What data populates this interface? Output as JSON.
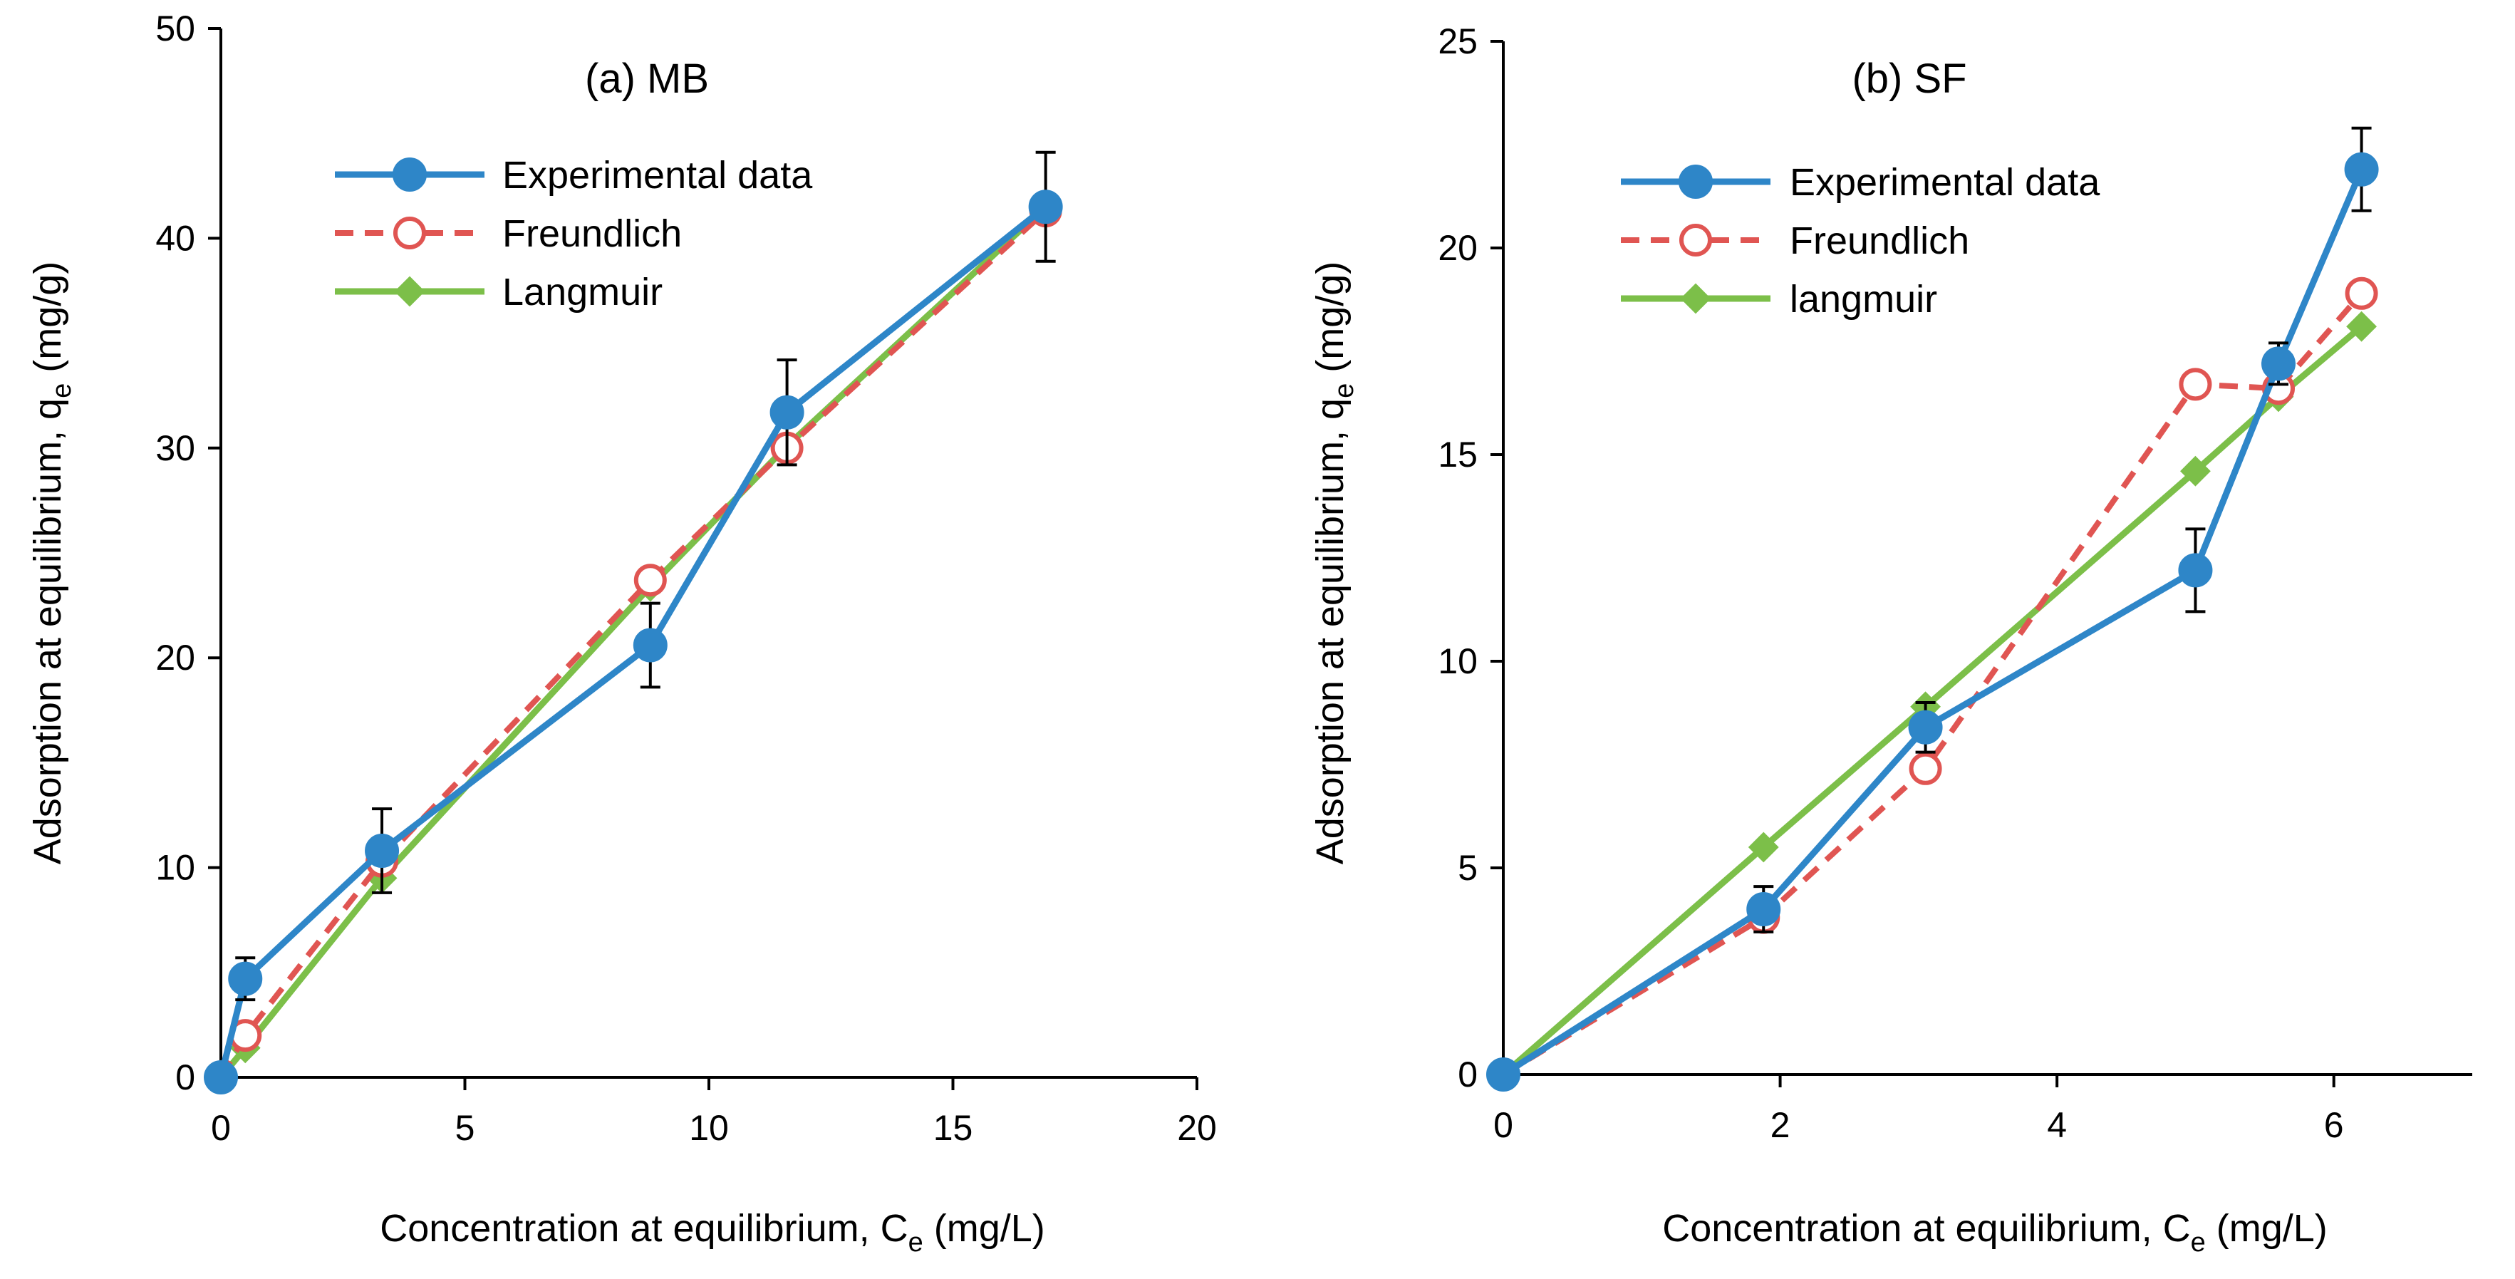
{
  "chart_data": [
    {
      "type": "line",
      "title": "(a) MB",
      "xlabel": "Concentration at equilibrium, C",
      "xlabel_sub": "e",
      "xlabel_unit": " (mg/L)",
      "ylabel": "Adsorption at equilibrium, q",
      "ylabel_sub": "e",
      "ylabel_unit": " (mg/g)",
      "xlim": [
        0,
        20
      ],
      "ylim": [
        0,
        50
      ],
      "xticks": [
        "0",
        "5",
        "10",
        "15",
        "20"
      ],
      "xtick_values": [
        0,
        5,
        10,
        15,
        20
      ],
      "yticks": [
        "0",
        "10",
        "20",
        "30",
        "40",
        "50"
      ],
      "ytick_values": [
        0,
        10,
        20,
        30,
        40,
        50
      ],
      "legend_position": "top-left",
      "series": [
        {
          "name": "Experimental data",
          "style": "solid-filled-circle",
          "color": "#2E86C8",
          "x": [
            0,
            0.5,
            3.3,
            8.8,
            11.6,
            16.9
          ],
          "y": [
            0,
            4.7,
            10.8,
            20.6,
            31.7,
            41.5
          ],
          "error": [
            0,
            1.0,
            2.0,
            2.0,
            2.5,
            2.6
          ]
        },
        {
          "name": "Freundlich",
          "style": "dashed-open-circle",
          "color": "#E05552",
          "x": [
            0,
            0.5,
            3.3,
            8.8,
            11.6,
            16.9
          ],
          "y": [
            0,
            2.0,
            10.3,
            23.7,
            30.0,
            41.3
          ]
        },
        {
          "name": "Langmuir",
          "style": "solid-diamond",
          "color": "#7CBF49",
          "x": [
            0,
            0.5,
            3.3,
            8.8,
            11.6,
            16.9
          ],
          "y": [
            0,
            1.4,
            9.5,
            23.4,
            30.1,
            41.5
          ]
        }
      ]
    },
    {
      "type": "line",
      "title": "(b) SF",
      "xlabel": "Concentration at equilibrium, C",
      "xlabel_sub": "e",
      "xlabel_unit": " (mg/L)",
      "ylabel": "Adsorption at equilibrium, q",
      "ylabel_sub": "e",
      "ylabel_unit": " (mg/g)",
      "xlim": [
        0,
        7
      ],
      "ylim": [
        0,
        25
      ],
      "xticks": [
        "0",
        "2",
        "4",
        "6"
      ],
      "xtick_values": [
        0,
        2,
        4,
        6
      ],
      "yticks": [
        "0",
        "5",
        "10",
        "15",
        "20",
        "25"
      ],
      "ytick_values": [
        0,
        5,
        10,
        15,
        20,
        25
      ],
      "legend_position": "top-left",
      "series": [
        {
          "name": "Experimental data",
          "style": "solid-filled-circle",
          "color": "#2E86C8",
          "x": [
            0,
            1.88,
            3.05,
            5.0,
            5.6,
            6.2
          ],
          "y": [
            0,
            4.0,
            8.4,
            12.2,
            17.2,
            21.9
          ],
          "error": [
            0,
            0.55,
            0.6,
            1.0,
            0.5,
            1.0
          ]
        },
        {
          "name": "Freundlich",
          "style": "dashed-open-circle",
          "color": "#E05552",
          "x": [
            0,
            1.88,
            3.05,
            5.0,
            5.6,
            6.2
          ],
          "y": [
            0,
            3.8,
            7.4,
            16.7,
            16.6,
            18.9
          ]
        },
        {
          "name": "langmuir",
          "style": "solid-diamond",
          "color": "#7CBF49",
          "x": [
            0,
            1.88,
            3.05,
            5.0,
            5.6,
            6.2
          ],
          "y": [
            0,
            5.5,
            8.9,
            14.6,
            16.4,
            18.1
          ]
        }
      ]
    }
  ]
}
